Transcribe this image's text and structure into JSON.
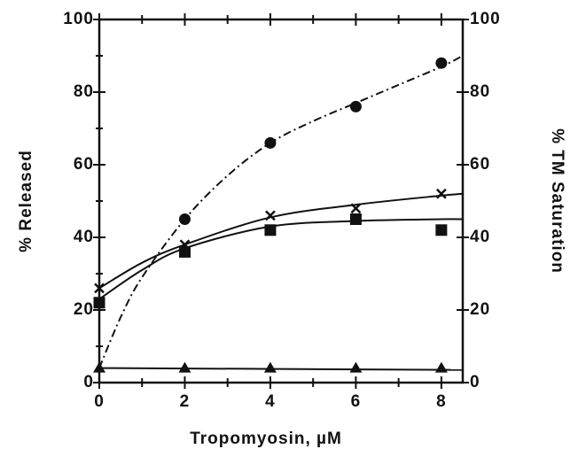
{
  "chart_data": {
    "type": "scatter",
    "xlabel": "Tropomyosin,  µM",
    "ylabel": "% Released",
    "y2label": "% TM Saturation",
    "xlim": [
      0,
      8.5
    ],
    "xticks": [
      0,
      2,
      4,
      6,
      8
    ],
    "xminor": [
      1,
      3,
      5,
      7
    ],
    "ylim": [
      0,
      100
    ],
    "yticks": [
      0,
      20,
      40,
      60,
      80,
      100
    ],
    "yminor": [
      10,
      30,
      50,
      70,
      90
    ],
    "y2lim": [
      0,
      100
    ],
    "y2ticks": [
      0,
      20,
      40,
      60,
      80,
      100
    ],
    "color": "#111111",
    "series": [
      {
        "marker": "circle",
        "line_style": "dashdot",
        "x": [
          2,
          4,
          6,
          8
        ],
        "values": [
          45,
          66,
          76,
          88
        ],
        "curve_x": [
          0,
          0.5,
          1,
          2,
          3,
          4,
          5,
          6,
          7,
          8,
          8.5
        ],
        "curve_values": [
          4,
          18,
          29,
          45,
          57,
          66,
          72,
          77,
          82,
          87,
          90
        ]
      },
      {
        "marker": "cross",
        "line_style": "solid",
        "x": [
          0,
          2,
          4,
          6,
          8
        ],
        "values": [
          26,
          38,
          46,
          48,
          52
        ],
        "curve_x": [
          0,
          1,
          2,
          4,
          6,
          8,
          8.5
        ],
        "curve_values": [
          26,
          33,
          38,
          45.5,
          49,
          51.5,
          52
        ]
      },
      {
        "marker": "square",
        "line_style": "solid",
        "x": [
          0,
          2,
          4,
          6,
          8
        ],
        "values": [
          22,
          36,
          42,
          45,
          42
        ],
        "curve_x": [
          0,
          1,
          2,
          4,
          6,
          8,
          8.5
        ],
        "curve_values": [
          23,
          31,
          37,
          43,
          44.5,
          45,
          45
        ]
      },
      {
        "marker": "triangle",
        "line_style": "solid",
        "x": [
          0,
          2,
          4,
          6,
          8
        ],
        "values": [
          4,
          4,
          4,
          4,
          4
        ],
        "curve_x": [
          0,
          8.5
        ],
        "curve_values": [
          4,
          3.5
        ]
      }
    ]
  }
}
